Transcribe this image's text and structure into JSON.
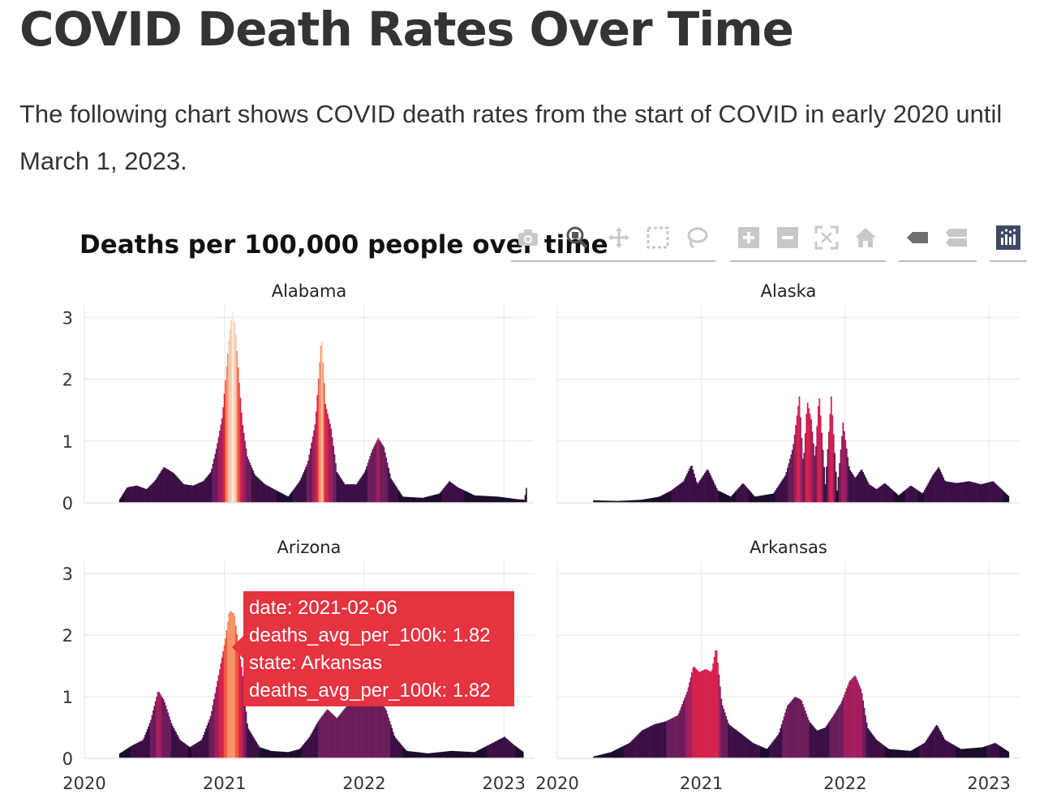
{
  "page": {
    "title": "COVID Death Rates Over Time",
    "intro": "The following chart shows COVID death rates from the start of COVID in early 2020 until March 1, 2023."
  },
  "modebar": [
    {
      "name": "camera-icon",
      "label": "Download plot as a png"
    },
    {
      "name": "zoom-icon",
      "label": "Zoom"
    },
    {
      "name": "pan-icon",
      "label": "Pan"
    },
    {
      "name": "box-select-icon",
      "label": "Box Select"
    },
    {
      "name": "lasso-icon",
      "label": "Lasso Select"
    },
    {
      "name": "zoom-in-icon",
      "label": "Zoom in"
    },
    {
      "name": "zoom-out-icon",
      "label": "Zoom out"
    },
    {
      "name": "autoscale-icon",
      "label": "Autoscale"
    },
    {
      "name": "home-icon",
      "label": "Reset axes"
    },
    {
      "name": "spike-closest-icon",
      "label": "Show closest data on hover"
    },
    {
      "name": "spike-compare-icon",
      "label": "Compare data on hover"
    },
    {
      "name": "plotly-logo-icon",
      "label": "Produced with Plotly"
    }
  ],
  "tooltip": {
    "line1": "date: 2021-02-06",
    "line2": "deaths_avg_per_100k: 1.82",
    "line3": "state: Arkansas",
    "line4": "deaths_avg_per_100k: 1.82",
    "color": "#e5333f"
  },
  "chart_data": {
    "type": "bar",
    "title": "Deaths per 100,000 people over time",
    "layout": "facet 2x2",
    "xticks": [
      "2020",
      "2021",
      "2022",
      "2023"
    ],
    "x_range": [
      "2020-01-01",
      "2023-03-20"
    ],
    "yticks": [
      "0",
      "1",
      "2",
      "3"
    ],
    "y_range": [
      0,
      3.2
    ],
    "grid": true,
    "colorscale": [
      "#1b0c2a",
      "#3b0f46",
      "#6b1d5a",
      "#a11f5c",
      "#d4234d",
      "#ef5a3f",
      "#f5926a",
      "#f9c9ae",
      "#fbe9de"
    ],
    "color_max": 3.2,
    "facets": [
      {
        "name": "Alabama",
        "points": [
          [
            "2020-04-01",
            0.06
          ],
          [
            "2020-04-20",
            0.25
          ],
          [
            "2020-05-15",
            0.28
          ],
          [
            "2020-06-10",
            0.22
          ],
          [
            "2020-07-01",
            0.35
          ],
          [
            "2020-07-25",
            0.58
          ],
          [
            "2020-08-20",
            0.48
          ],
          [
            "2020-09-15",
            0.3
          ],
          [
            "2020-10-10",
            0.28
          ],
          [
            "2020-11-05",
            0.35
          ],
          [
            "2020-11-25",
            0.5
          ],
          [
            "2020-12-10",
            0.9
          ],
          [
            "2020-12-25",
            1.4
          ],
          [
            "2021-01-05",
            2.2
          ],
          [
            "2021-01-12",
            2.7
          ],
          [
            "2021-01-20",
            3.1
          ],
          [
            "2021-01-27",
            2.9
          ],
          [
            "2021-02-05",
            2.1
          ],
          [
            "2021-02-15",
            1.3
          ],
          [
            "2021-02-28",
            0.75
          ],
          [
            "2021-03-20",
            0.45
          ],
          [
            "2021-04-15",
            0.3
          ],
          [
            "2021-05-15",
            0.2
          ],
          [
            "2021-06-15",
            0.1
          ],
          [
            "2021-07-15",
            0.35
          ],
          [
            "2021-08-05",
            0.65
          ],
          [
            "2021-08-25",
            1.3
          ],
          [
            "2021-09-10",
            2.72
          ],
          [
            "2021-09-20",
            1.6
          ],
          [
            "2021-10-05",
            1.2
          ],
          [
            "2021-10-20",
            0.5
          ],
          [
            "2021-11-10",
            0.3
          ],
          [
            "2021-12-10",
            0.3
          ],
          [
            "2022-01-01",
            0.5
          ],
          [
            "2022-01-20",
            0.85
          ],
          [
            "2022-02-05",
            1.05
          ],
          [
            "2022-02-20",
            0.9
          ],
          [
            "2022-03-10",
            0.4
          ],
          [
            "2022-04-10",
            0.1
          ],
          [
            "2022-06-01",
            0.08
          ],
          [
            "2022-07-15",
            0.15
          ],
          [
            "2022-08-10",
            0.35
          ],
          [
            "2022-09-01",
            0.25
          ],
          [
            "2022-10-15",
            0.12
          ],
          [
            "2022-12-15",
            0.1
          ],
          [
            "2023-02-01",
            0.06
          ],
          [
            "2023-02-22",
            0.05
          ],
          [
            "2023-03-01",
            0.32
          ]
        ]
      },
      {
        "name": "Alaska",
        "points": [
          [
            "2020-04-01",
            0.04
          ],
          [
            "2020-06-01",
            0.03
          ],
          [
            "2020-08-01",
            0.05
          ],
          [
            "2020-09-15",
            0.1
          ],
          [
            "2020-10-15",
            0.2
          ],
          [
            "2020-11-15",
            0.35
          ],
          [
            "2020-12-05",
            0.62
          ],
          [
            "2020-12-20",
            0.3
          ],
          [
            "2021-01-15",
            0.55
          ],
          [
            "2021-02-10",
            0.2
          ],
          [
            "2021-03-15",
            0.1
          ],
          [
            "2021-04-15",
            0.32
          ],
          [
            "2021-05-15",
            0.1
          ],
          [
            "2021-07-01",
            0.15
          ],
          [
            "2021-08-01",
            0.45
          ],
          [
            "2021-08-20",
            0.9
          ],
          [
            "2021-09-05",
            1.72
          ],
          [
            "2021-09-15",
            0.6
          ],
          [
            "2021-09-25",
            1.65
          ],
          [
            "2021-10-05",
            1.35
          ],
          [
            "2021-10-15",
            0.7
          ],
          [
            "2021-10-25",
            1.78
          ],
          [
            "2021-11-10",
            0.3
          ],
          [
            "2021-11-25",
            1.72
          ],
          [
            "2021-12-10",
            0.2
          ],
          [
            "2021-12-25",
            1.3
          ],
          [
            "2022-01-10",
            0.55
          ],
          [
            "2022-01-25",
            0.4
          ],
          [
            "2022-02-10",
            0.55
          ],
          [
            "2022-03-01",
            0.3
          ],
          [
            "2022-03-20",
            0.22
          ],
          [
            "2022-04-10",
            0.32
          ],
          [
            "2022-05-15",
            0.12
          ],
          [
            "2022-06-15",
            0.28
          ],
          [
            "2022-07-15",
            0.15
          ],
          [
            "2022-08-10",
            0.45
          ],
          [
            "2022-08-25",
            0.58
          ],
          [
            "2022-09-10",
            0.35
          ],
          [
            "2022-10-10",
            0.32
          ],
          [
            "2022-11-10",
            0.35
          ],
          [
            "2022-12-10",
            0.3
          ],
          [
            "2023-01-10",
            0.35
          ],
          [
            "2023-02-20",
            0.1
          ]
        ]
      },
      {
        "name": "Arizona",
        "points": [
          [
            "2020-04-01",
            0.08
          ],
          [
            "2020-05-01",
            0.2
          ],
          [
            "2020-06-01",
            0.3
          ],
          [
            "2020-06-20",
            0.6
          ],
          [
            "2020-07-10",
            1.1
          ],
          [
            "2020-07-25",
            0.95
          ],
          [
            "2020-08-15",
            0.55
          ],
          [
            "2020-09-05",
            0.3
          ],
          [
            "2020-10-01",
            0.18
          ],
          [
            "2020-11-01",
            0.3
          ],
          [
            "2020-11-25",
            0.7
          ],
          [
            "2020-12-15",
            1.35
          ],
          [
            "2021-01-01",
            1.9
          ],
          [
            "2021-01-12",
            2.4
          ],
          [
            "2021-01-25",
            2.35
          ],
          [
            "2021-02-05",
            1.82
          ],
          [
            "2021-02-15",
            1.4
          ],
          [
            "2021-03-01",
            0.5
          ],
          [
            "2021-04-01",
            0.18
          ],
          [
            "2021-05-01",
            0.12
          ],
          [
            "2021-06-15",
            0.1
          ],
          [
            "2021-07-15",
            0.15
          ],
          [
            "2021-08-10",
            0.35
          ],
          [
            "2021-09-01",
            0.6
          ],
          [
            "2021-09-25",
            0.8
          ],
          [
            "2021-10-20",
            0.65
          ],
          [
            "2021-11-15",
            0.85
          ],
          [
            "2021-12-10",
            0.9
          ],
          [
            "2022-01-10",
            1.0
          ],
          [
            "2022-02-05",
            0.95
          ],
          [
            "2022-02-25",
            0.8
          ],
          [
            "2022-03-20",
            0.35
          ],
          [
            "2022-04-20",
            0.12
          ],
          [
            "2022-06-15",
            0.08
          ],
          [
            "2022-08-15",
            0.12
          ],
          [
            "2022-10-15",
            0.1
          ],
          [
            "2022-12-01",
            0.25
          ],
          [
            "2023-01-01",
            0.35
          ],
          [
            "2023-01-25",
            0.22
          ],
          [
            "2023-02-20",
            0.1
          ]
        ]
      },
      {
        "name": "Arkansas",
        "points": [
          [
            "2020-04-01",
            0.03
          ],
          [
            "2020-05-15",
            0.1
          ],
          [
            "2020-07-01",
            0.25
          ],
          [
            "2020-08-01",
            0.45
          ],
          [
            "2020-09-01",
            0.55
          ],
          [
            "2020-10-01",
            0.6
          ],
          [
            "2020-11-01",
            0.7
          ],
          [
            "2020-11-25",
            1.1
          ],
          [
            "2020-12-10",
            1.5
          ],
          [
            "2020-12-25",
            1.4
          ],
          [
            "2021-01-10",
            1.45
          ],
          [
            "2021-01-25",
            1.4
          ],
          [
            "2021-02-06",
            1.82
          ],
          [
            "2021-02-20",
            0.9
          ],
          [
            "2021-03-10",
            0.55
          ],
          [
            "2021-04-10",
            0.4
          ],
          [
            "2021-05-10",
            0.25
          ],
          [
            "2021-06-15",
            0.15
          ],
          [
            "2021-07-15",
            0.4
          ],
          [
            "2021-08-05",
            0.85
          ],
          [
            "2021-08-25",
            1.0
          ],
          [
            "2021-09-10",
            0.95
          ],
          [
            "2021-09-30",
            0.6
          ],
          [
            "2021-10-20",
            0.45
          ],
          [
            "2021-11-10",
            0.5
          ],
          [
            "2021-12-01",
            0.7
          ],
          [
            "2021-12-20",
            0.9
          ],
          [
            "2022-01-10",
            1.25
          ],
          [
            "2022-01-25",
            1.35
          ],
          [
            "2022-02-10",
            1.1
          ],
          [
            "2022-02-25",
            0.5
          ],
          [
            "2022-03-20",
            0.3
          ],
          [
            "2022-04-20",
            0.15
          ],
          [
            "2022-06-15",
            0.12
          ],
          [
            "2022-07-20",
            0.25
          ],
          [
            "2022-08-20",
            0.55
          ],
          [
            "2022-09-10",
            0.3
          ],
          [
            "2022-10-20",
            0.15
          ],
          [
            "2022-12-15",
            0.18
          ],
          [
            "2023-01-15",
            0.25
          ],
          [
            "2023-02-20",
            0.1
          ]
        ]
      }
    ]
  }
}
